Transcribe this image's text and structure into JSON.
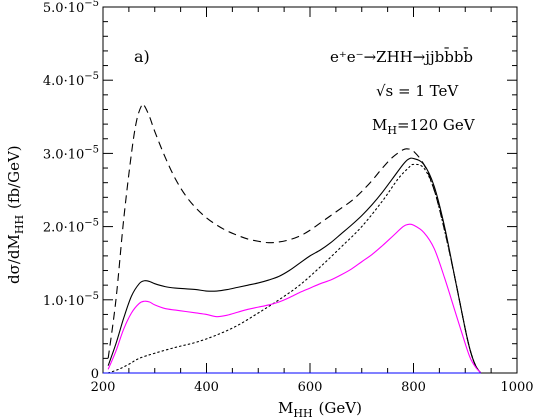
{
  "chart_data": {
    "type": "line",
    "panel_label": "a)",
    "xlabel_main": "M",
    "xlabel_sub": "HH",
    "xlabel_unit": "(GeV)",
    "ylabel_main": "dσ/dM",
    "ylabel_sub": "HH",
    "ylabel_unit": "(fb/GeV)",
    "xlim": [
      200,
      1000
    ],
    "ylim": [
      0,
      5e-05
    ],
    "xticks": [
      200,
      400,
      600,
      800,
      1000
    ],
    "xtick_labels": [
      "200",
      "400",
      "600",
      "800",
      "1000"
    ],
    "yticks": [
      0,
      1e-05,
      2e-05,
      3e-05,
      4e-05,
      5e-05
    ],
    "ytick_labels": [
      {
        "mantissa": "0",
        "exp": ""
      },
      {
        "mantissa": "1.0·10",
        "exp": "−5"
      },
      {
        "mantissa": "2.0·10",
        "exp": "−5"
      },
      {
        "mantissa": "3.0·10",
        "exp": "−5"
      },
      {
        "mantissa": "4.0·10",
        "exp": "−5"
      },
      {
        "mantissa": "5.0·10",
        "exp": "−5"
      }
    ],
    "annotations": {
      "process": "e⁺e⁻→ZHH→jjbb̄bb̄",
      "energy": "√s = 1 TeV",
      "mass_main": "M",
      "mass_sub": "H",
      "mass_value": "=120 GeV"
    },
    "series": [
      {
        "style": "dashed",
        "color": "#000000",
        "x": [
          210,
          225,
          240,
          255,
          265,
          275,
          280,
          290,
          300,
          320,
          340,
          360,
          380,
          400,
          420,
          440,
          460,
          480,
          500,
          520,
          540,
          560,
          580,
          600,
          620,
          640,
          660,
          680,
          700,
          720,
          740,
          760,
          780,
          790,
          800,
          820,
          840,
          860,
          880,
          900,
          910,
          920,
          930
        ],
        "y": [
          2e-06,
          1e-05,
          2.1e-05,
          3e-05,
          3.45e-05,
          3.66e-05,
          3.65e-05,
          3.5e-05,
          3.3e-05,
          2.95e-05,
          2.65e-05,
          2.42e-05,
          2.25e-05,
          2.12e-05,
          2.02e-05,
          1.94e-05,
          1.88e-05,
          1.83e-05,
          1.8e-05,
          1.78e-05,
          1.79e-05,
          1.82e-05,
          1.87e-05,
          1.95e-05,
          2.05e-05,
          2.15e-05,
          2.25e-05,
          2.35e-05,
          2.48e-05,
          2.63e-05,
          2.8e-05,
          2.95e-05,
          3.05e-05,
          3.06e-05,
          3.03e-05,
          2.85e-05,
          2.5e-05,
          1.95e-05,
          1.3e-05,
          6e-06,
          3e-06,
          1e-06,
          0.0
        ]
      },
      {
        "style": "solid",
        "color": "#000000",
        "x": [
          210,
          225,
          240,
          255,
          270,
          280,
          290,
          300,
          320,
          340,
          360,
          380,
          400,
          420,
          440,
          460,
          480,
          500,
          520,
          540,
          560,
          580,
          600,
          620,
          640,
          660,
          680,
          700,
          720,
          740,
          760,
          780,
          790,
          800,
          820,
          840,
          860,
          880,
          900,
          910,
          920,
          930
        ],
        "y": [
          1e-06,
          4e-06,
          7.5e-06,
          1.05e-05,
          1.22e-05,
          1.26e-05,
          1.25e-05,
          1.22e-05,
          1.18e-05,
          1.16e-05,
          1.15e-05,
          1.14e-05,
          1.12e-05,
          1.12e-05,
          1.14e-05,
          1.17e-05,
          1.2e-05,
          1.23e-05,
          1.27e-05,
          1.32e-05,
          1.4e-05,
          1.5e-05,
          1.6e-05,
          1.68e-05,
          1.78e-05,
          1.9e-05,
          2.02e-05,
          2.15e-05,
          2.3e-05,
          2.47e-05,
          2.66e-05,
          2.85e-05,
          2.92e-05,
          2.93e-05,
          2.85e-05,
          2.55e-05,
          2e-05,
          1.3e-05,
          6e-06,
          3e-06,
          1e-06,
          0.0
        ]
      },
      {
        "style": "dotted",
        "color": "#000000",
        "x": [
          210,
          230,
          250,
          270,
          300,
          340,
          380,
          420,
          460,
          500,
          540,
          580,
          620,
          660,
          700,
          740,
          770,
          790,
          800,
          820,
          840,
          860,
          880,
          900,
          910,
          920,
          930
        ],
        "y": [
          0.0,
          5e-07,
          1.2e-06,
          2e-06,
          2.7e-06,
          3.5e-06,
          4.2e-06,
          5.2e-06,
          6.5e-06,
          8.2e-06,
          1e-05,
          1.2e-05,
          1.45e-05,
          1.72e-05,
          2e-05,
          2.35e-05,
          2.65e-05,
          2.8e-05,
          2.85e-05,
          2.8e-05,
          2.5e-05,
          1.95e-05,
          1.3e-05,
          6e-06,
          3e-06,
          1e-06,
          0.0
        ]
      },
      {
        "style": "solid",
        "color": "#ff00ff",
        "x": [
          210,
          225,
          240,
          255,
          270,
          280,
          290,
          300,
          320,
          340,
          360,
          380,
          400,
          420,
          440,
          460,
          480,
          500,
          520,
          540,
          560,
          580,
          600,
          620,
          640,
          660,
          680,
          700,
          720,
          740,
          760,
          780,
          790,
          800,
          820,
          840,
          860,
          880,
          900,
          910,
          920,
          930
        ],
        "y": [
          5e-07,
          3e-06,
          6e-06,
          8.2e-06,
          9.5e-06,
          9.8e-06,
          9.7e-06,
          9.3e-06,
          8.8e-06,
          8.6e-06,
          8.4e-06,
          8.2e-06,
          8e-06,
          7.7e-06,
          7.9e-06,
          8.3e-06,
          8.7e-06,
          9e-06,
          9.3e-06,
          9.7e-06,
          1.03e-05,
          1.1e-05,
          1.16e-05,
          1.22e-05,
          1.27e-05,
          1.34e-05,
          1.42e-05,
          1.52e-05,
          1.62e-05,
          1.74e-05,
          1.87e-05,
          2e-05,
          2.03e-05,
          2.02e-05,
          1.92e-05,
          1.7e-05,
          1.3e-05,
          8.5e-06,
          4e-06,
          2e-06,
          8e-07,
          0.0
        ]
      },
      {
        "style": "solid",
        "color": "#0000ff",
        "x": [
          200,
          400,
          600,
          800,
          930
        ],
        "y": [
          0.0,
          0.0,
          0.0,
          0.0,
          0.0
        ]
      }
    ]
  }
}
